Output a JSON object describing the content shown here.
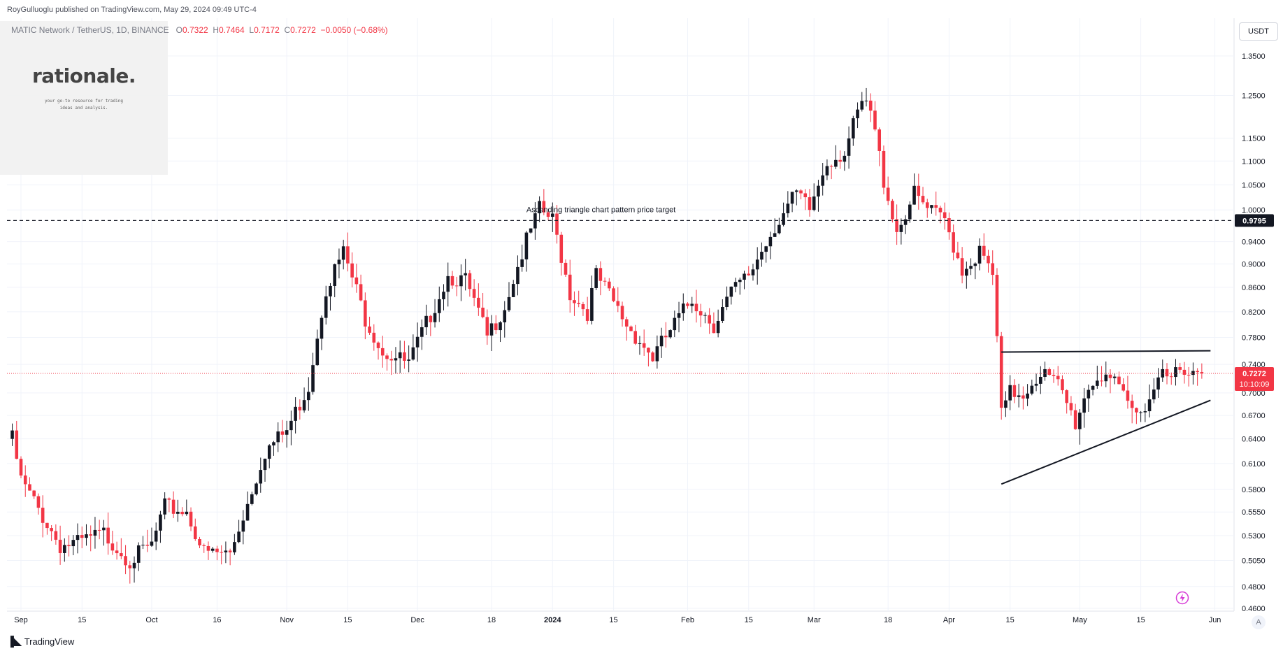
{
  "header": {
    "publisher": "RoyGulluoglu published on TradingView.com, May 29, 2024 09:49 UTC-4"
  },
  "symbol": {
    "name": "MATIC Network / TetherUS, 1D, BINANCE",
    "open_label": "O",
    "open": "0.7322",
    "high_label": "H",
    "high": "0.7464",
    "low_label": "L",
    "low": "0.7172",
    "close_label": "C",
    "close": "0.7272",
    "change": "−0.0050 (−0.68%)"
  },
  "logo": {
    "word": "rationale.",
    "tagline_1": "your go-to resource for trading",
    "tagline_2": "ideas and analysis."
  },
  "currency": "USDT",
  "annotation": "Ascending triangle chart pattern price target",
  "price_labels": {
    "target": "0.9795",
    "last": "0.7272",
    "countdown": "10:10:09"
  },
  "footer": {
    "brand": "TradingView"
  },
  "auto_label": "A",
  "colors": {
    "up": "#131722",
    "down": "#f23645",
    "target_line": "#131722",
    "last_line": "#f23645",
    "grid": "#f0f3fa"
  },
  "chart_data": {
    "type": "candlestick",
    "scale": "log",
    "y_ticks": [
      "1.3500",
      "1.2500",
      "1.1500",
      "1.1000",
      "1.0500",
      "1.0000",
      "0.9400",
      "0.9000",
      "0.8600",
      "0.8200",
      "0.7800",
      "0.7400",
      "0.7000",
      "0.6700",
      "0.6400",
      "0.6100",
      "0.5800",
      "0.5550",
      "0.5300",
      "0.5050",
      "0.4800",
      "0.4600"
    ],
    "x_ticks": [
      {
        "label": "Sep",
        "date": "2023-09-01"
      },
      {
        "label": "15",
        "date": "2023-09-15"
      },
      {
        "label": "Oct",
        "date": "2023-10-01"
      },
      {
        "label": "16",
        "date": "2023-10-16"
      },
      {
        "label": "Nov",
        "date": "2023-11-01"
      },
      {
        "label": "15",
        "date": "2023-11-15"
      },
      {
        "label": "Dec",
        "date": "2023-12-01"
      },
      {
        "label": "18",
        "date": "2023-12-18"
      },
      {
        "label": "2024",
        "date": "2024-01-01"
      },
      {
        "label": "15",
        "date": "2024-01-15"
      },
      {
        "label": "Feb",
        "date": "2024-02-01"
      },
      {
        "label": "15",
        "date": "2024-02-15"
      },
      {
        "label": "Mar",
        "date": "2024-03-01"
      },
      {
        "label": "18",
        "date": "2024-03-18"
      },
      {
        "label": "Apr",
        "date": "2024-04-01"
      },
      {
        "label": "15",
        "date": "2024-04-15"
      },
      {
        "label": "May",
        "date": "2024-05-01"
      },
      {
        "label": "15",
        "date": "2024-05-15"
      },
      {
        "label": "Jun",
        "date": "2024-06-01"
      }
    ],
    "target_price": 0.9795,
    "last_price": 0.7272,
    "resistance_line": {
      "start": {
        "date": "2024-04-13",
        "price": 0.758
      },
      "end": {
        "date": "2024-05-31",
        "price": 0.76
      }
    },
    "support_line": {
      "start": {
        "date": "2024-04-13",
        "price": 0.586
      },
      "end": {
        "date": "2024-05-31",
        "price": 0.69
      }
    },
    "price_anchors": [
      [
        "2023-08-30",
        0.64
      ],
      [
        "2023-09-01",
        0.59
      ],
      [
        "2023-09-06",
        0.55
      ],
      [
        "2023-09-10",
        0.52
      ],
      [
        "2023-09-14",
        0.522
      ],
      [
        "2023-09-20",
        0.532
      ],
      [
        "2023-09-26",
        0.505
      ],
      [
        "2023-10-01",
        0.52
      ],
      [
        "2023-10-04",
        0.56
      ],
      [
        "2023-10-09",
        0.556
      ],
      [
        "2023-10-13",
        0.512
      ],
      [
        "2023-10-19",
        0.512
      ],
      [
        "2023-10-23",
        0.565
      ],
      [
        "2023-10-27",
        0.625
      ],
      [
        "2023-11-01",
        0.65
      ],
      [
        "2023-11-06",
        0.71
      ],
      [
        "2023-11-10",
        0.86
      ],
      [
        "2023-11-14",
        0.92
      ],
      [
        "2023-11-19",
        0.81
      ],
      [
        "2023-11-23",
        0.76
      ],
      [
        "2023-11-29",
        0.74
      ],
      [
        "2023-12-03",
        0.8
      ],
      [
        "2023-12-08",
        0.88
      ],
      [
        "2023-12-12",
        0.87
      ],
      [
        "2023-12-17",
        0.78
      ],
      [
        "2023-12-21",
        0.83
      ],
      [
        "2023-12-26",
        0.94
      ],
      [
        "2023-12-29",
        1.0
      ],
      [
        "2024-01-01",
        0.98
      ],
      [
        "2024-01-05",
        0.85
      ],
      [
        "2024-01-09",
        0.82
      ],
      [
        "2024-01-11",
        0.88
      ],
      [
        "2024-01-18",
        0.8
      ],
      [
        "2024-01-24",
        0.75
      ],
      [
        "2024-01-28",
        0.79
      ],
      [
        "2024-02-02",
        0.84
      ],
      [
        "2024-02-07",
        0.8
      ],
      [
        "2024-02-11",
        0.85
      ],
      [
        "2024-02-15",
        0.88
      ],
      [
        "2024-02-21",
        0.97
      ],
      [
        "2024-02-26",
        1.03
      ],
      [
        "2024-02-29",
        1.0
      ],
      [
        "2024-03-04",
        1.1
      ],
      [
        "2024-03-08",
        1.12
      ],
      [
        "2024-03-12",
        1.23
      ],
      [
        "2024-03-14",
        1.21
      ],
      [
        "2024-03-17",
        1.06
      ],
      [
        "2024-03-20",
        0.96
      ],
      [
        "2024-03-24",
        1.03
      ],
      [
        "2024-03-27",
        1.0
      ],
      [
        "2024-03-31",
        0.98
      ],
      [
        "2024-04-04",
        0.89
      ],
      [
        "2024-04-08",
        0.92
      ],
      [
        "2024-04-11",
        0.88
      ],
      [
        "2024-04-13",
        0.67
      ],
      [
        "2024-04-15",
        0.7
      ],
      [
        "2024-04-18",
        0.7
      ],
      [
        "2024-04-22",
        0.73
      ],
      [
        "2024-04-26",
        0.71
      ],
      [
        "2024-04-30",
        0.66
      ],
      [
        "2024-05-03",
        0.71
      ],
      [
        "2024-05-07",
        0.73
      ],
      [
        "2024-05-10",
        0.7
      ],
      [
        "2024-05-14",
        0.67
      ],
      [
        "2024-05-18",
        0.705
      ],
      [
        "2024-05-20",
        0.74
      ],
      [
        "2024-05-25",
        0.72
      ],
      [
        "2024-05-29",
        0.7272
      ]
    ]
  }
}
